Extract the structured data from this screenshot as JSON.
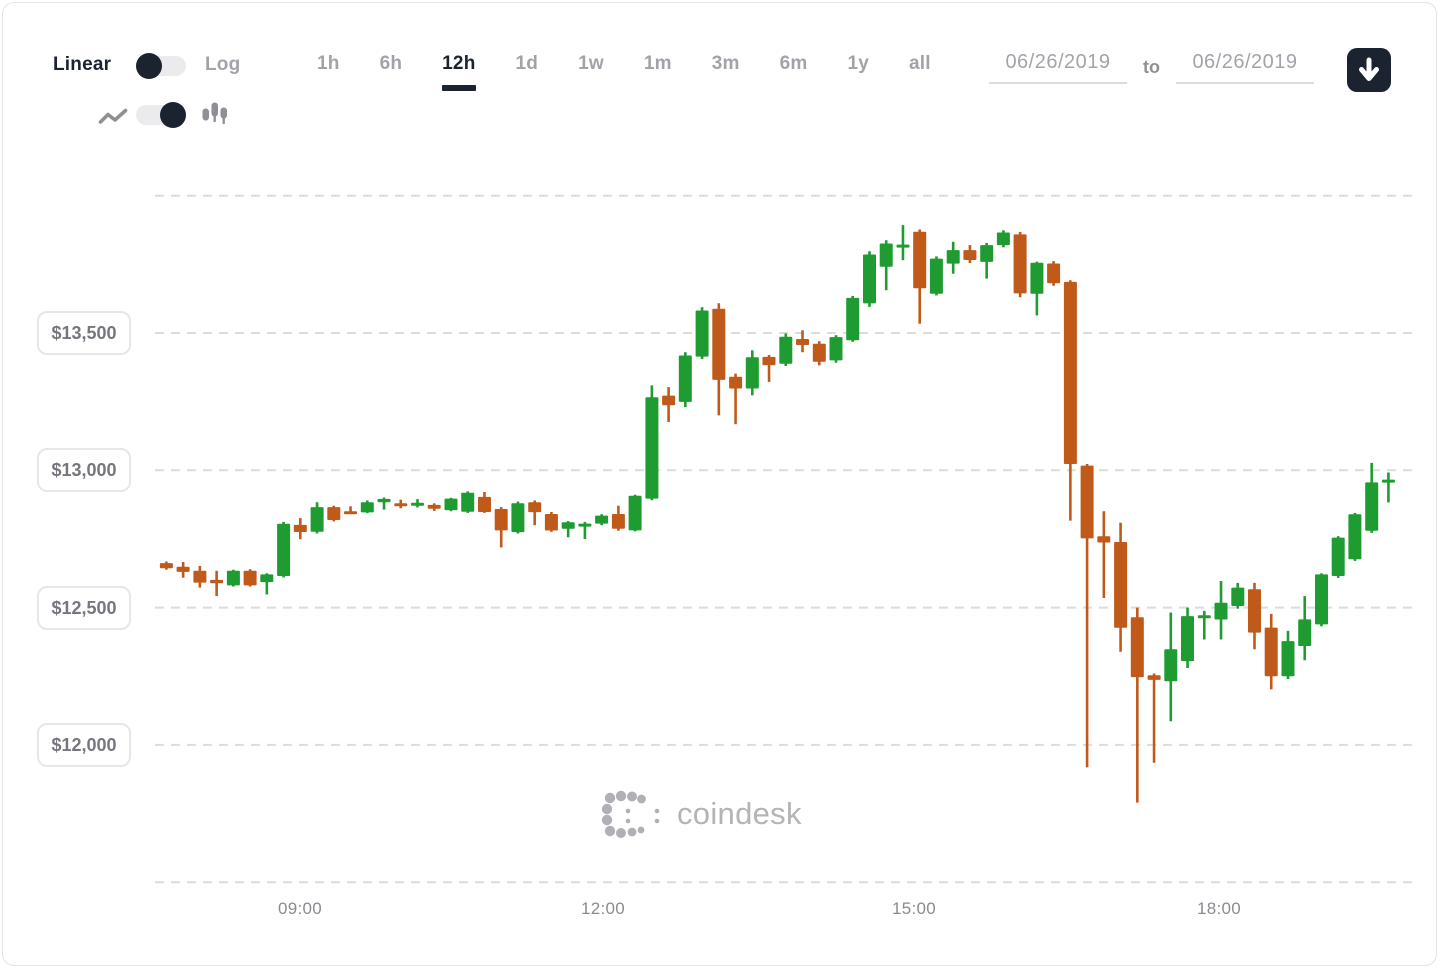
{
  "toolbar": {
    "scale": {
      "left_label": "Linear",
      "right_label": "Log",
      "selected": "Linear"
    },
    "ranges": [
      {
        "label": "1h",
        "active": false
      },
      {
        "label": "6h",
        "active": false
      },
      {
        "label": "12h",
        "active": true
      },
      {
        "label": "1d",
        "active": false
      },
      {
        "label": "1w",
        "active": false
      },
      {
        "label": "1m",
        "active": false
      },
      {
        "label": "3m",
        "active": false
      },
      {
        "label": "6m",
        "active": false
      },
      {
        "label": "1y",
        "active": false
      },
      {
        "label": "all",
        "active": false
      }
    ],
    "dates": {
      "from": "06/26/2019",
      "separator": "to",
      "to": "06/26/2019"
    },
    "download_icon": "download-arrow-icon",
    "chart_type": {
      "options": [
        "line",
        "candlestick"
      ],
      "selected": "candlestick",
      "left_icon": "line-chart-icon",
      "right_icon": "candlestick-icon"
    }
  },
  "watermark": {
    "brand": "coindesk"
  },
  "chart_data": {
    "type": "candlestick",
    "title": "Bitcoin price (USD), 12h candlestick view",
    "x_ticks": [
      "09:00",
      "12:00",
      "15:00",
      "18:00"
    ],
    "y_ticks": [
      {
        "label": "$13,500",
        "value": 13500
      },
      {
        "label": "$13,000",
        "value": 13000
      },
      {
        "label": "$12,500",
        "value": 12500
      },
      {
        "label": "$12,000",
        "value": 12000
      }
    ],
    "grid_values": [
      14000,
      13500,
      13000,
      12500,
      12000,
      11500
    ],
    "ylim": [
      11500,
      14000
    ],
    "grid": "dashed-horizontal",
    "colors": {
      "up": "#1e9c31",
      "down": "#c05a1a",
      "gridline": "#dcdcdf"
    },
    "candles_format": [
      "open",
      "high",
      "low",
      "close"
    ],
    "candles": [
      [
        12662,
        12668,
        12638,
        12643
      ],
      [
        12649,
        12666,
        12609,
        12630
      ],
      [
        12634,
        12652,
        12573,
        12591
      ],
      [
        12601,
        12634,
        12542,
        12589
      ],
      [
        12581,
        12638,
        12577,
        12634
      ],
      [
        12634,
        12640,
        12577,
        12581
      ],
      [
        12593,
        12625,
        12548,
        12621
      ],
      [
        12615,
        12812,
        12610,
        12805
      ],
      [
        12801,
        12826,
        12749,
        12775
      ],
      [
        12776,
        12884,
        12770,
        12866
      ],
      [
        12866,
        12871,
        12814,
        12819
      ],
      [
        12851,
        12869,
        12843,
        12846
      ],
      [
        12847,
        12890,
        12844,
        12884
      ],
      [
        12884,
        12901,
        12857,
        12896
      ],
      [
        12880,
        12893,
        12862,
        12874
      ],
      [
        12877,
        12895,
        12865,
        12882
      ],
      [
        12874,
        12880,
        12852,
        12860
      ],
      [
        12855,
        12900,
        12851,
        12897
      ],
      [
        12849,
        12923,
        12845,
        12918
      ],
      [
        12903,
        12921,
        12845,
        12848
      ],
      [
        12859,
        12866,
        12719,
        12781
      ],
      [
        12775,
        12886,
        12770,
        12880
      ],
      [
        12884,
        12890,
        12800,
        12848
      ],
      [
        12841,
        12848,
        12776,
        12781
      ],
      [
        12787,
        12815,
        12756,
        12811
      ],
      [
        12802,
        12812,
        12750,
        12806
      ],
      [
        12806,
        12840,
        12800,
        12835
      ],
      [
        12841,
        12871,
        12780,
        12787
      ],
      [
        12781,
        12911,
        12778,
        12907
      ],
      [
        12897,
        13309,
        12891,
        13266
      ],
      [
        13272,
        13303,
        13176,
        13237
      ],
      [
        13249,
        13430,
        13230,
        13418
      ],
      [
        13414,
        13594,
        13405,
        13582
      ],
      [
        13588,
        13608,
        13200,
        13329
      ],
      [
        13341,
        13352,
        13168,
        13298
      ],
      [
        13298,
        13437,
        13273,
        13412
      ],
      [
        13413,
        13420,
        13322,
        13383
      ],
      [
        13388,
        13498,
        13380,
        13486
      ],
      [
        13478,
        13510,
        13430,
        13456
      ],
      [
        13461,
        13470,
        13382,
        13395
      ],
      [
        13400,
        13492,
        13392,
        13485
      ],
      [
        13474,
        13635,
        13468,
        13628
      ],
      [
        13608,
        13798,
        13595,
        13786
      ],
      [
        13741,
        13838,
        13656,
        13826
      ],
      [
        13815,
        13893,
        13765,
        13822
      ],
      [
        13869,
        13877,
        13534,
        13663
      ],
      [
        13643,
        13779,
        13637,
        13771
      ],
      [
        13753,
        13832,
        13716,
        13802
      ],
      [
        13802,
        13820,
        13755,
        13766
      ],
      [
        13759,
        13828,
        13698,
        13820
      ],
      [
        13820,
        13874,
        13812,
        13866
      ],
      [
        13859,
        13868,
        13630,
        13644
      ],
      [
        13643,
        13760,
        13564,
        13756
      ],
      [
        13753,
        13762,
        13672,
        13681
      ],
      [
        13686,
        13692,
        12817,
        13023
      ],
      [
        13017,
        13023,
        11918,
        12752
      ],
      [
        12760,
        12851,
        12535,
        12737
      ],
      [
        12739,
        12809,
        12339,
        12427
      ],
      [
        12465,
        12500,
        11790,
        12247
      ],
      [
        12254,
        12260,
        11935,
        12237
      ],
      [
        12232,
        12482,
        12086,
        12348
      ],
      [
        12305,
        12500,
        12280,
        12469
      ],
      [
        12466,
        12488,
        12384,
        12472
      ],
      [
        12457,
        12597,
        12384,
        12518
      ],
      [
        12506,
        12590,
        12496,
        12573
      ],
      [
        12567,
        12590,
        12348,
        12409
      ],
      [
        12427,
        12477,
        12202,
        12250
      ],
      [
        12250,
        12415,
        12240,
        12378
      ],
      [
        12360,
        12542,
        12308,
        12457
      ],
      [
        12439,
        12625,
        12432,
        12621
      ],
      [
        12615,
        12760,
        12608,
        12755
      ],
      [
        12676,
        12845,
        12670,
        12840
      ],
      [
        12780,
        13027,
        12772,
        12956
      ],
      [
        12958,
        12992,
        12883,
        12966
      ]
    ]
  }
}
